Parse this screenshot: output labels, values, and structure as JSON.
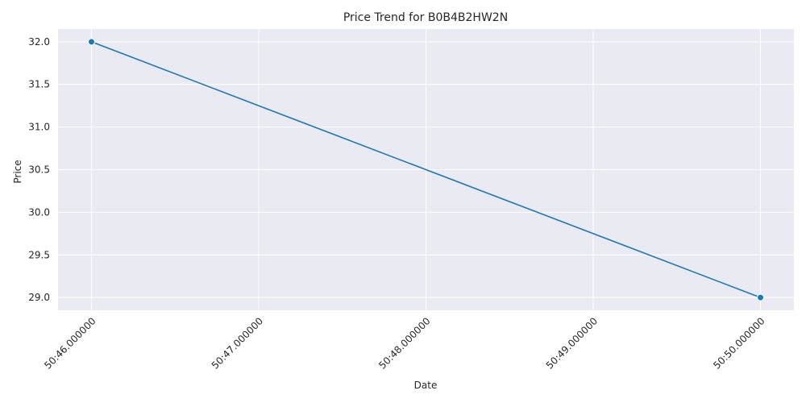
{
  "chart_data": {
    "type": "line",
    "title": "Price Trend for B0B4B2HW2N",
    "xlabel": "Date",
    "ylabel": "Price",
    "x_ticks": [
      "50:46.000000",
      "50:47.000000",
      "50:48.000000",
      "50:49.000000",
      "50:50.000000"
    ],
    "y_ticks": [
      29.0,
      29.5,
      30.0,
      30.5,
      31.0,
      31.5,
      32.0
    ],
    "ylim": [
      28.85,
      32.15
    ],
    "xlim": [
      "50:45.800000",
      "50:50.200000"
    ],
    "series": [
      {
        "x": [
          "50:46.000000",
          "50:50.000000"
        ],
        "values": [
          32.0,
          29.0
        ],
        "color": "#1f77b4",
        "marker": "circle"
      }
    ],
    "grid": true,
    "legend": "none"
  }
}
